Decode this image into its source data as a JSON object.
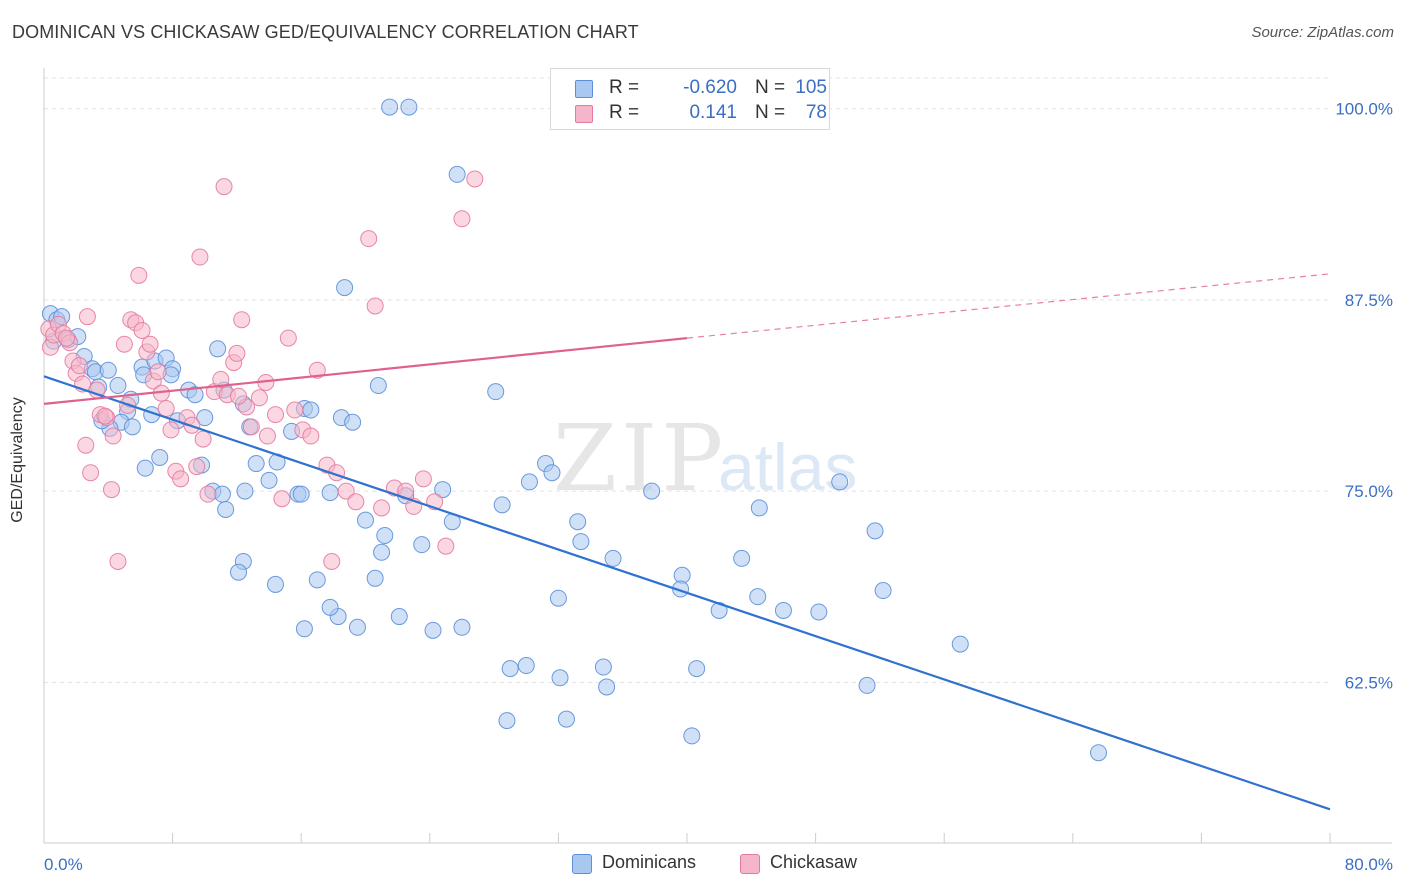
{
  "header": {
    "title": "DOMINICAN VS CHICKASAW GED/EQUIVALENCY CORRELATION CHART",
    "source": "Source: ZipAtlas.com"
  },
  "watermark": {
    "zip": "ZIP",
    "atlas": "atlas"
  },
  "legend": {
    "rows": [
      {
        "r_label": "R =",
        "r_value": "-0.620",
        "n_label": "N =",
        "n_value": "105",
        "color": "#a9c8f0"
      },
      {
        "r_label": "R =",
        "r_value": "0.141",
        "n_label": "N =",
        "n_value": "78",
        "color": "#f5b6c9"
      }
    ]
  },
  "bottom_legend": [
    {
      "label": "Dominicans",
      "color": "#a9c8f0"
    },
    {
      "label": "Chickasaw",
      "color": "#f5b6c9"
    }
  ],
  "chart_data": {
    "type": "scatter",
    "title": "DOMINICAN VS CHICKASAW GED/EQUIVALENCY CORRELATION CHART",
    "ylabel": "GED/Equivalency",
    "xlabel": "",
    "xlim": [
      0,
      80
    ],
    "ylim": [
      52,
      102
    ],
    "x_tick_labels": [
      "0.0%",
      "80.0%"
    ],
    "y_ticks": [
      100,
      87.5,
      75,
      62.5
    ],
    "y_tick_labels": [
      "100.0%",
      "87.5%",
      "75.0%",
      "62.5%"
    ],
    "grid": "horizontal-dashed",
    "series": [
      {
        "name": "Dominicans",
        "color": "#5b8fd9",
        "fill": "#a9c8f0",
        "trend": {
          "x0": 0,
          "y0": 82.5,
          "x1": 80,
          "y1": 54.2,
          "dashed_from": null
        },
        "points": [
          [
            0.4,
            86.6
          ],
          [
            0.6,
            84.8
          ],
          [
            0.8,
            86.2
          ],
          [
            1.1,
            86.4
          ],
          [
            1.5,
            84.9
          ],
          [
            2.1,
            85.1
          ],
          [
            2.5,
            83.8
          ],
          [
            3.0,
            83.0
          ],
          [
            3.2,
            82.8
          ],
          [
            4.0,
            82.9
          ],
          [
            3.4,
            81.8
          ],
          [
            4.6,
            81.9
          ],
          [
            5.2,
            80.2
          ],
          [
            5.4,
            81.0
          ],
          [
            6.1,
            83.1
          ],
          [
            6.2,
            82.6
          ],
          [
            6.9,
            83.5
          ],
          [
            7.6,
            83.7
          ],
          [
            8.0,
            83.0
          ],
          [
            9.0,
            81.6
          ],
          [
            9.4,
            81.3
          ],
          [
            10.0,
            79.8
          ],
          [
            10.8,
            84.3
          ],
          [
            11.2,
            81.6
          ],
          [
            12.4,
            80.7
          ],
          [
            12.8,
            79.2
          ],
          [
            13.2,
            76.8
          ],
          [
            14.5,
            76.9
          ],
          [
            15.4,
            78.9
          ],
          [
            16.2,
            80.4
          ],
          [
            15.8,
            74.8
          ],
          [
            16.0,
            74.8
          ],
          [
            16.6,
            80.3
          ],
          [
            17.8,
            74.9
          ],
          [
            18.5,
            79.8
          ],
          [
            19.2,
            79.5
          ],
          [
            14.0,
            75.7
          ],
          [
            12.5,
            75.0
          ],
          [
            11.3,
            73.8
          ],
          [
            10.5,
            75.0
          ],
          [
            9.8,
            76.7
          ],
          [
            7.2,
            77.2
          ],
          [
            6.3,
            76.5
          ],
          [
            4.8,
            79.5
          ],
          [
            5.5,
            79.2
          ],
          [
            4.1,
            79.1
          ],
          [
            3.6,
            79.6
          ],
          [
            6.7,
            80.0
          ],
          [
            8.3,
            79.6
          ],
          [
            7.9,
            82.6
          ],
          [
            18.7,
            88.3
          ],
          [
            21.5,
            100.1
          ],
          [
            22.7,
            100.1
          ],
          [
            25.7,
            95.7
          ],
          [
            20.8,
            81.9
          ],
          [
            28.1,
            81.5
          ],
          [
            22.5,
            74.7
          ],
          [
            20.6,
            69.3
          ],
          [
            18.3,
            66.8
          ],
          [
            17.8,
            67.4
          ],
          [
            16.2,
            66.0
          ],
          [
            17.0,
            69.2
          ],
          [
            14.4,
            68.9
          ],
          [
            12.4,
            70.4
          ],
          [
            12.1,
            69.7
          ],
          [
            11.1,
            74.8
          ],
          [
            20.0,
            73.1
          ],
          [
            21.0,
            71.0
          ],
          [
            21.2,
            72.1
          ],
          [
            23.5,
            71.5
          ],
          [
            24.8,
            75.1
          ],
          [
            25.4,
            73.0
          ],
          [
            26.0,
            66.1
          ],
          [
            24.2,
            65.9
          ],
          [
            22.1,
            66.8
          ],
          [
            19.5,
            66.1
          ],
          [
            28.5,
            74.1
          ],
          [
            30.2,
            75.6
          ],
          [
            31.2,
            76.8
          ],
          [
            31.6,
            76.2
          ],
          [
            33.2,
            73.0
          ],
          [
            33.4,
            71.7
          ],
          [
            32.0,
            68.0
          ],
          [
            35.4,
            70.6
          ],
          [
            37.8,
            75.0
          ],
          [
            39.7,
            69.5
          ],
          [
            39.6,
            68.6
          ],
          [
            42.0,
            67.2
          ],
          [
            43.4,
            70.6
          ],
          [
            44.4,
            68.1
          ],
          [
            44.5,
            73.9
          ],
          [
            46.0,
            67.2
          ],
          [
            48.2,
            67.1
          ],
          [
            49.5,
            75.6
          ],
          [
            51.7,
            72.4
          ],
          [
            52.2,
            68.5
          ],
          [
            57.0,
            65.0
          ],
          [
            51.2,
            62.3
          ],
          [
            29.0,
            63.4
          ],
          [
            30.0,
            63.6
          ],
          [
            32.1,
            62.8
          ],
          [
            34.8,
            63.5
          ],
          [
            35.0,
            62.2
          ],
          [
            40.6,
            63.4
          ],
          [
            28.8,
            60.0
          ],
          [
            32.5,
            60.1
          ],
          [
            40.3,
            59.0
          ],
          [
            65.6,
            57.9
          ]
        ]
      },
      {
        "name": "Chickasaw",
        "color": "#e57aa0",
        "fill": "#f5b6c9",
        "trend": {
          "x0": 0,
          "y0": 80.7,
          "x1": 40,
          "y1": 85.0,
          "x_end": 80,
          "y_end": 89.2
        },
        "points": [
          [
            0.3,
            85.6
          ],
          [
            0.4,
            84.4
          ],
          [
            0.6,
            85.2
          ],
          [
            0.9,
            85.9
          ],
          [
            1.2,
            85.3
          ],
          [
            1.6,
            84.7
          ],
          [
            1.8,
            83.5
          ],
          [
            2.0,
            82.7
          ],
          [
            2.2,
            83.2
          ],
          [
            2.4,
            82.0
          ],
          [
            2.6,
            78.0
          ],
          [
            2.9,
            76.2
          ],
          [
            3.3,
            81.6
          ],
          [
            3.5,
            80.0
          ],
          [
            3.9,
            79.8
          ],
          [
            4.2,
            75.1
          ],
          [
            4.3,
            78.6
          ],
          [
            4.6,
            70.4
          ],
          [
            5.0,
            84.6
          ],
          [
            5.2,
            80.6
          ],
          [
            5.4,
            86.2
          ],
          [
            5.7,
            86.0
          ],
          [
            6.1,
            85.5
          ],
          [
            6.4,
            84.1
          ],
          [
            6.6,
            84.6
          ],
          [
            6.8,
            82.2
          ],
          [
            7.1,
            82.8
          ],
          [
            7.3,
            81.4
          ],
          [
            7.6,
            80.4
          ],
          [
            7.9,
            79.0
          ],
          [
            8.2,
            76.3
          ],
          [
            8.5,
            75.8
          ],
          [
            8.9,
            79.8
          ],
          [
            9.2,
            79.3
          ],
          [
            9.5,
            76.6
          ],
          [
            9.9,
            78.4
          ],
          [
            10.2,
            74.8
          ],
          [
            10.6,
            81.5
          ],
          [
            11.0,
            82.3
          ],
          [
            11.4,
            81.3
          ],
          [
            11.8,
            83.4
          ],
          [
            12.0,
            84.0
          ],
          [
            12.3,
            86.2
          ],
          [
            12.6,
            80.5
          ],
          [
            12.9,
            79.2
          ],
          [
            13.4,
            81.1
          ],
          [
            13.8,
            82.1
          ],
          [
            14.4,
            80.0
          ],
          [
            14.8,
            74.5
          ],
          [
            15.2,
            85.0
          ],
          [
            15.6,
            80.3
          ],
          [
            16.1,
            79.0
          ],
          [
            16.6,
            78.6
          ],
          [
            17.0,
            82.9
          ],
          [
            17.6,
            76.7
          ],
          [
            18.2,
            76.2
          ],
          [
            18.8,
            75.0
          ],
          [
            19.4,
            74.3
          ],
          [
            20.2,
            91.5
          ],
          [
            20.6,
            87.1
          ],
          [
            21.0,
            73.9
          ],
          [
            21.8,
            75.2
          ],
          [
            22.5,
            75.0
          ],
          [
            23.0,
            74.0
          ],
          [
            23.6,
            75.8
          ],
          [
            24.3,
            74.3
          ],
          [
            25.0,
            71.4
          ],
          [
            26.0,
            92.8
          ],
          [
            26.8,
            95.4
          ],
          [
            11.2,
            94.9
          ],
          [
            5.9,
            89.1
          ],
          [
            9.7,
            90.3
          ],
          [
            17.9,
            70.4
          ],
          [
            2.7,
            86.4
          ],
          [
            1.4,
            85.0
          ],
          [
            12.1,
            81.2
          ],
          [
            13.9,
            78.6
          ],
          [
            3.8,
            79.9
          ]
        ]
      }
    ]
  }
}
